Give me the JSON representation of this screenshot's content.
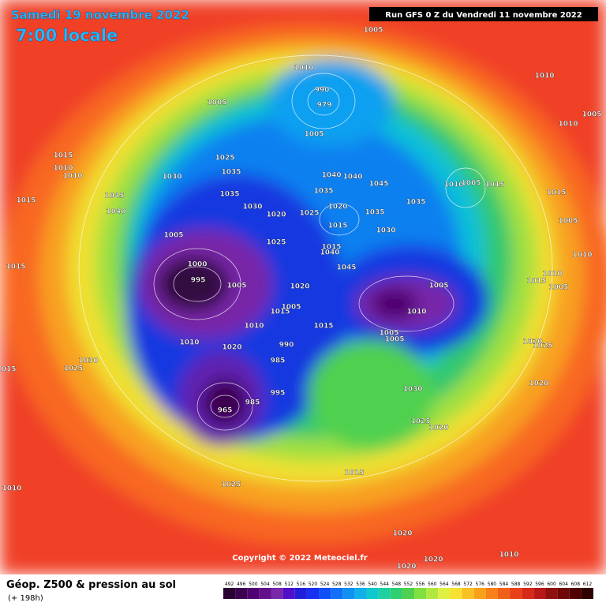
{
  "header": {
    "date": "Samedi 19 novembre 2022",
    "time": "7:00 locale",
    "run": "Run GFS 0 Z du Vendredi 11 novembre 2022"
  },
  "copyright": "Copyright © 2022 Meteociel.fr",
  "footer": {
    "title": "Géop. Z500 & pression au sol",
    "lead": "(+ 198h)"
  },
  "colorbar": {
    "ticks": [
      492,
      496,
      500,
      504,
      508,
      512,
      516,
      520,
      524,
      528,
      532,
      536,
      540,
      544,
      548,
      552,
      556,
      560,
      564,
      568,
      572,
      576,
      580,
      584,
      588,
      592,
      596,
      600,
      604,
      608,
      612
    ],
    "colors": [
      "#2a0030",
      "#3c0050",
      "#500070",
      "#64108c",
      "#7828a8",
      "#5010c8",
      "#2020d8",
      "#1830f0",
      "#1050f8",
      "#1070f8",
      "#1090f0",
      "#10b0e8",
      "#10c8d0",
      "#20d0a0",
      "#30d070",
      "#50d050",
      "#80e040",
      "#b0e840",
      "#e0f040",
      "#f8e030",
      "#f8c020",
      "#f8a018",
      "#f88018",
      "#f06018",
      "#e84018",
      "#d82818",
      "#b81818",
      "#901010",
      "#700808",
      "#500000",
      "#300000"
    ]
  },
  "isobar_labels": [
    "1005",
    "1010",
    "1010",
    "1005",
    "990",
    "979",
    "1005",
    "1010",
    "1005",
    "1015",
    "1010",
    "1010",
    "1025",
    "1035",
    "1030",
    "1035",
    "1045",
    "1040",
    "1030",
    "1020",
    "1025",
    "1020",
    "1015",
    "1040",
    "1040",
    "1045",
    "1035",
    "1035",
    "1030",
    "1035",
    "1010",
    "1005",
    "1015",
    "1015",
    "1015",
    "1005",
    "1000",
    "995",
    "1005",
    "1025",
    "1015",
    "1040",
    "1045",
    "1020",
    "1005",
    "1005",
    "1010",
    "1015",
    "1010",
    "1015",
    "1005",
    "1005",
    "1015",
    "1015",
    "1010",
    "1005",
    "1010",
    "1020",
    "990",
    "985",
    "1025",
    "1030",
    "1015",
    "995",
    "985",
    "965",
    "1030",
    "1020",
    "1020",
    "1025",
    "1025",
    "1020",
    "1025",
    "1010",
    "1015",
    "1020",
    "1020",
    "1020",
    "1010",
    "1005",
    "1010"
  ]
}
